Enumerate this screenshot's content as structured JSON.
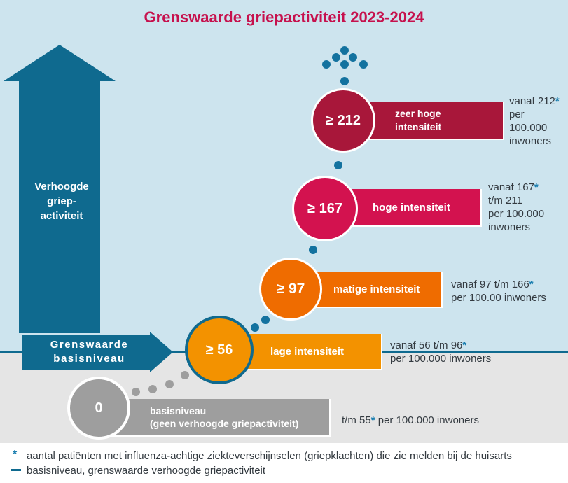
{
  "title": "Grenswaarde griepactiviteit 2023-2024",
  "arrows": {
    "up_label": "Verhoogde griep-activiteit",
    "up_label_lines": [
      "Verhoogde",
      "griep-",
      "activiteit"
    ],
    "right_label_lines": [
      "Grenswaarde",
      "basisniveau"
    ]
  },
  "levels": [
    {
      "key": "basis",
      "circle": "0",
      "label_lines": [
        "basisniveau",
        "(geen verhoogde griepactiviteit)"
      ],
      "desc_lines": [
        "t/m 55",
        " per 100.000 inwoners"
      ],
      "color": "#9e9e9e"
    },
    {
      "key": "laag",
      "circle": "≥ 56",
      "label_lines": [
        "lage intensiteit"
      ],
      "desc_lines": [
        "vanaf 56 t/m 96",
        "per 100.000 inwoners"
      ],
      "color": "#f39200"
    },
    {
      "key": "matig",
      "circle": "≥ 97",
      "label_lines": [
        "matige intensiteit"
      ],
      "desc_lines": [
        "vanaf 97 t/m 166",
        "per 100.00 inwoners"
      ],
      "color": "#ef6c00"
    },
    {
      "key": "hoog",
      "circle": "≥ 167",
      "label_lines": [
        "hoge intensiteit"
      ],
      "desc_lines": [
        "vanaf 167",
        "t/m 211",
        "per 100.000",
        "inwoners"
      ],
      "color": "#d3124f"
    },
    {
      "key": "zeerhoog",
      "circle": "≥ 212",
      "label_lines": [
        "zeer hoge",
        "intensiteit"
      ],
      "desc_lines": [
        "vanaf 212",
        "per",
        "100.000",
        "inwoners"
      ],
      "color": "#a8173a"
    }
  ],
  "legend": {
    "star_symbol": "*",
    "star_text": "aantal patiënten met influenza-achtige ziekteverschijnselen (griepklachten) die zie melden bij de huisarts",
    "line_text": "basisniveau, grenswaarde verhoogde griepactiviteit"
  },
  "colors": {
    "title": "#c6114d",
    "arrow": "#0f6a8f",
    "dots_blue": "#13729f",
    "dots_gray": "#9e9e9e",
    "bg_top": "#cde4ee",
    "bg_bottom": "#e5e5e5"
  }
}
